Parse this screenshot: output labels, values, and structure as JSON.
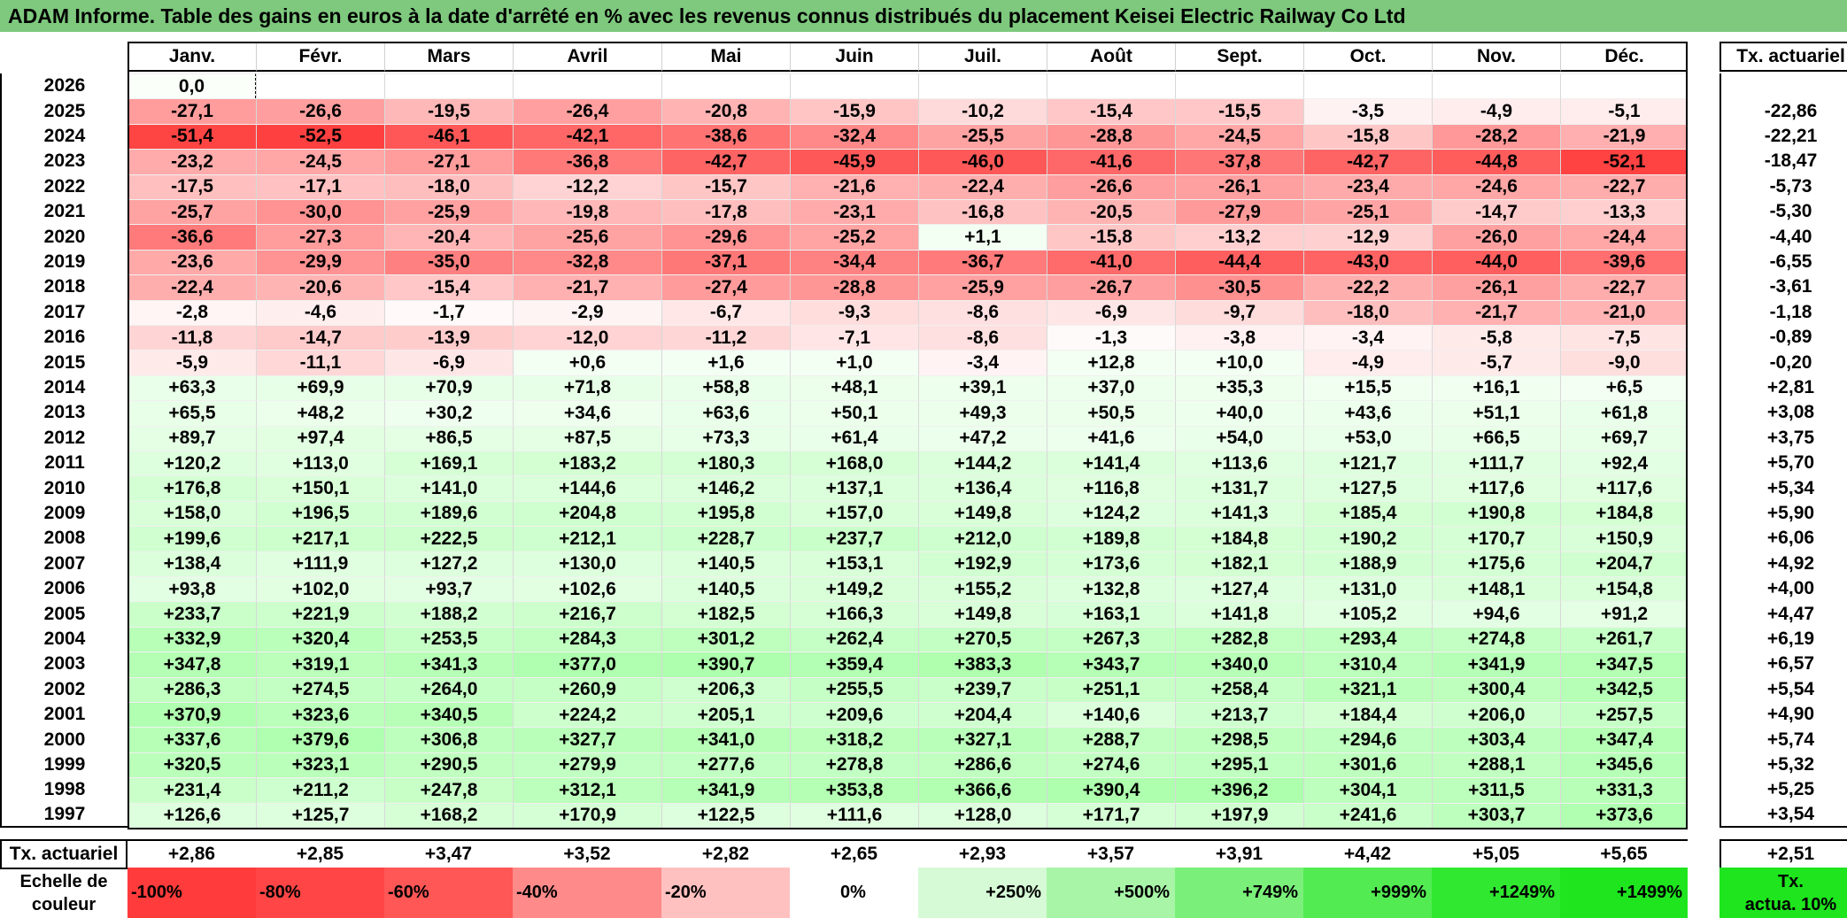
{
  "title": "ADAM Informe. Table des gains en euros à la date d'arrêté en % avec les revenus connus distribués du placement Keisei Electric Railway Co Ltd",
  "chart_data": {
    "type": "table",
    "months": [
      "Janv.",
      "Févr.",
      "Mars",
      "Avril",
      "Mai",
      "Juin",
      "Juil.",
      "Août",
      "Sept.",
      "Oct.",
      "Nov.",
      "Déc."
    ],
    "annual_header": "Tx. actuariel",
    "rows": [
      {
        "year": "2026",
        "values": [
          "0,0",
          "",
          "",
          "",
          "",
          "",
          "",
          "",
          "",
          "",
          "",
          ""
        ],
        "annual": ""
      },
      {
        "year": "2025",
        "values": [
          "-27,1",
          "-26,6",
          "-19,5",
          "-26,4",
          "-20,8",
          "-15,9",
          "-10,2",
          "-15,4",
          "-15,5",
          "-3,5",
          "-4,9",
          "-5,1"
        ],
        "annual": "-22,86"
      },
      {
        "year": "2024",
        "values": [
          "-51,4",
          "-52,5",
          "-46,1",
          "-42,1",
          "-38,6",
          "-32,4",
          "-25,5",
          "-28,8",
          "-24,5",
          "-15,8",
          "-28,2",
          "-21,9"
        ],
        "annual": "-22,21"
      },
      {
        "year": "2023",
        "values": [
          "-23,2",
          "-24,5",
          "-27,1",
          "-36,8",
          "-42,7",
          "-45,9",
          "-46,0",
          "-41,6",
          "-37,8",
          "-42,7",
          "-44,8",
          "-52,1"
        ],
        "annual": "-18,47"
      },
      {
        "year": "2022",
        "values": [
          "-17,5",
          "-17,1",
          "-18,0",
          "-12,2",
          "-15,7",
          "-21,6",
          "-22,4",
          "-26,6",
          "-26,1",
          "-23,4",
          "-24,6",
          "-22,7"
        ],
        "annual": "-5,73"
      },
      {
        "year": "2021",
        "values": [
          "-25,7",
          "-30,0",
          "-25,9",
          "-19,8",
          "-17,8",
          "-23,1",
          "-16,8",
          "-20,5",
          "-27,9",
          "-25,1",
          "-14,7",
          "-13,3"
        ],
        "annual": "-5,30"
      },
      {
        "year": "2020",
        "values": [
          "-36,6",
          "-27,3",
          "-20,4",
          "-25,6",
          "-29,6",
          "-25,2",
          "+1,1",
          "-15,8",
          "-13,2",
          "-12,9",
          "-26,0",
          "-24,4"
        ],
        "annual": "-4,40"
      },
      {
        "year": "2019",
        "values": [
          "-23,6",
          "-29,9",
          "-35,0",
          "-32,8",
          "-37,1",
          "-34,4",
          "-36,7",
          "-41,0",
          "-44,4",
          "-43,0",
          "-44,0",
          "-39,6"
        ],
        "annual": "-6,55"
      },
      {
        "year": "2018",
        "values": [
          "-22,4",
          "-20,6",
          "-15,4",
          "-21,7",
          "-27,4",
          "-28,8",
          "-25,9",
          "-26,7",
          "-30,5",
          "-22,2",
          "-26,1",
          "-22,7"
        ],
        "annual": "-3,61"
      },
      {
        "year": "2017",
        "values": [
          "-2,8",
          "-4,6",
          "-1,7",
          "-2,9",
          "-6,7",
          "-9,3",
          "-8,6",
          "-6,9",
          "-9,7",
          "-18,0",
          "-21,7",
          "-21,0"
        ],
        "annual": "-1,18"
      },
      {
        "year": "2016",
        "values": [
          "-11,8",
          "-14,7",
          "-13,9",
          "-12,0",
          "-11,2",
          "-7,1",
          "-8,6",
          "-1,3",
          "-3,8",
          "-3,4",
          "-5,8",
          "-7,5"
        ],
        "annual": "-0,89"
      },
      {
        "year": "2015",
        "values": [
          "-5,9",
          "-11,1",
          "-6,9",
          "+0,6",
          "+1,6",
          "+1,0",
          "-3,4",
          "+12,8",
          "+10,0",
          "-4,9",
          "-5,7",
          "-9,0"
        ],
        "annual": "-0,20"
      },
      {
        "year": "2014",
        "values": [
          "+63,3",
          "+69,9",
          "+70,9",
          "+71,8",
          "+58,8",
          "+48,1",
          "+39,1",
          "+37,0",
          "+35,3",
          "+15,5",
          "+16,1",
          "+6,5"
        ],
        "annual": "+2,81"
      },
      {
        "year": "2013",
        "values": [
          "+65,5",
          "+48,2",
          "+30,2",
          "+34,6",
          "+63,6",
          "+50,1",
          "+49,3",
          "+50,5",
          "+40,0",
          "+43,6",
          "+51,1",
          "+61,8"
        ],
        "annual": "+3,08"
      },
      {
        "year": "2012",
        "values": [
          "+89,7",
          "+97,4",
          "+86,5",
          "+87,5",
          "+73,3",
          "+61,4",
          "+47,2",
          "+41,6",
          "+54,0",
          "+53,0",
          "+66,5",
          "+69,7"
        ],
        "annual": "+3,75"
      },
      {
        "year": "2011",
        "values": [
          "+120,2",
          "+113,0",
          "+169,1",
          "+183,2",
          "+180,3",
          "+168,0",
          "+144,2",
          "+141,4",
          "+113,6",
          "+121,7",
          "+111,7",
          "+92,4"
        ],
        "annual": "+5,70"
      },
      {
        "year": "2010",
        "values": [
          "+176,8",
          "+150,1",
          "+141,0",
          "+144,6",
          "+146,2",
          "+137,1",
          "+136,4",
          "+116,8",
          "+131,7",
          "+127,5",
          "+117,6",
          "+117,6"
        ],
        "annual": "+5,34"
      },
      {
        "year": "2009",
        "values": [
          "+158,0",
          "+196,5",
          "+189,6",
          "+204,8",
          "+195,8",
          "+157,0",
          "+149,8",
          "+124,2",
          "+141,3",
          "+185,4",
          "+190,8",
          "+184,8"
        ],
        "annual": "+5,90"
      },
      {
        "year": "2008",
        "values": [
          "+199,6",
          "+217,1",
          "+222,5",
          "+212,1",
          "+228,7",
          "+237,7",
          "+212,0",
          "+189,8",
          "+184,8",
          "+190,2",
          "+170,7",
          "+150,9"
        ],
        "annual": "+6,06"
      },
      {
        "year": "2007",
        "values": [
          "+138,4",
          "+111,9",
          "+127,2",
          "+130,0",
          "+140,5",
          "+153,1",
          "+192,9",
          "+173,6",
          "+182,1",
          "+188,9",
          "+175,6",
          "+204,7"
        ],
        "annual": "+4,92"
      },
      {
        "year": "2006",
        "values": [
          "+93,8",
          "+102,0",
          "+93,7",
          "+102,6",
          "+140,5",
          "+149,2",
          "+155,2",
          "+132,8",
          "+127,4",
          "+131,0",
          "+148,1",
          "+154,8"
        ],
        "annual": "+4,00"
      },
      {
        "year": "2005",
        "values": [
          "+233,7",
          "+221,9",
          "+188,2",
          "+216,7",
          "+182,5",
          "+166,3",
          "+149,8",
          "+163,1",
          "+141,8",
          "+105,2",
          "+94,6",
          "+91,2"
        ],
        "annual": "+4,47"
      },
      {
        "year": "2004",
        "values": [
          "+332,9",
          "+320,4",
          "+253,5",
          "+284,3",
          "+301,2",
          "+262,4",
          "+270,5",
          "+267,3",
          "+282,8",
          "+293,4",
          "+274,8",
          "+261,7"
        ],
        "annual": "+6,19"
      },
      {
        "year": "2003",
        "values": [
          "+347,8",
          "+319,1",
          "+341,3",
          "+377,0",
          "+390,7",
          "+359,4",
          "+383,3",
          "+343,7",
          "+340,0",
          "+310,4",
          "+341,9",
          "+347,5"
        ],
        "annual": "+6,57"
      },
      {
        "year": "2002",
        "values": [
          "+286,3",
          "+274,5",
          "+264,0",
          "+260,9",
          "+206,3",
          "+255,5",
          "+239,7",
          "+251,1",
          "+258,4",
          "+321,1",
          "+300,4",
          "+342,5"
        ],
        "annual": "+5,54"
      },
      {
        "year": "2001",
        "values": [
          "+370,9",
          "+323,6",
          "+340,5",
          "+224,2",
          "+205,1",
          "+209,6",
          "+204,4",
          "+140,6",
          "+213,7",
          "+184,4",
          "+206,0",
          "+257,5"
        ],
        "annual": "+4,90"
      },
      {
        "year": "2000",
        "values": [
          "+337,6",
          "+379,6",
          "+306,8",
          "+327,7",
          "+341,0",
          "+318,2",
          "+327,1",
          "+288,7",
          "+298,5",
          "+294,6",
          "+303,4",
          "+347,4"
        ],
        "annual": "+5,74"
      },
      {
        "year": "1999",
        "values": [
          "+320,5",
          "+323,1",
          "+290,5",
          "+279,9",
          "+277,6",
          "+278,8",
          "+286,6",
          "+274,6",
          "+295,1",
          "+301,6",
          "+288,1",
          "+345,6"
        ],
        "annual": "+5,32"
      },
      {
        "year": "1998",
        "values": [
          "+231,4",
          "+211,2",
          "+247,8",
          "+312,1",
          "+341,9",
          "+353,8",
          "+366,6",
          "+390,4",
          "+396,2",
          "+304,1",
          "+311,5",
          "+331,3"
        ],
        "annual": "+5,25"
      },
      {
        "year": "1997",
        "values": [
          "+126,6",
          "+125,7",
          "+168,2",
          "+170,9",
          "+122,5",
          "+111,6",
          "+128,0",
          "+171,7",
          "+197,9",
          "+241,6",
          "+303,7",
          "+373,6"
        ],
        "annual": "+3,54"
      }
    ],
    "footer": {
      "label": "Tx. actuariel",
      "values": [
        "+2,86",
        "+2,85",
        "+3,47",
        "+3,52",
        "+2,82",
        "+2,65",
        "+2,93",
        "+3,57",
        "+3,91",
        "+4,42",
        "+5,05",
        "+5,65"
      ],
      "annual": "+2,51"
    },
    "scale": {
      "label_line1": "Echelle de",
      "label_line2": "couleur",
      "items": [
        {
          "text": "-100%",
          "color": "#ff3b3b",
          "align": "left"
        },
        {
          "text": "-80%",
          "color": "#ff4545",
          "align": "left"
        },
        {
          "text": "-60%",
          "color": "#ff5656",
          "align": "left"
        },
        {
          "text": "-40%",
          "color": "#ff8a8a",
          "align": "left"
        },
        {
          "text": "-20%",
          "color": "#ffc0c0",
          "align": "left"
        },
        {
          "text": "0%",
          "color": "#ffffff",
          "align": "center"
        },
        {
          "text": "+250%",
          "color": "#d6fad6",
          "align": "right"
        },
        {
          "text": "+500%",
          "color": "#a8f5a8",
          "align": "right"
        },
        {
          "text": "+749%",
          "color": "#7af07a",
          "align": "right"
        },
        {
          "text": "+999%",
          "color": "#52ec52",
          "align": "right"
        },
        {
          "text": "+1249%",
          "color": "#30e830",
          "align": "right"
        },
        {
          "text": "+1499%",
          "color": "#1ee51e",
          "align": "right"
        }
      ],
      "annual_line1": "Tx.",
      "annual_line2": "actua. 10%",
      "annual_color": "#1ee51e"
    },
    "colors": {
      "negative": "#ff3b3b",
      "positive": "#1ee51e",
      "title_bg": "#7ec97e"
    }
  }
}
